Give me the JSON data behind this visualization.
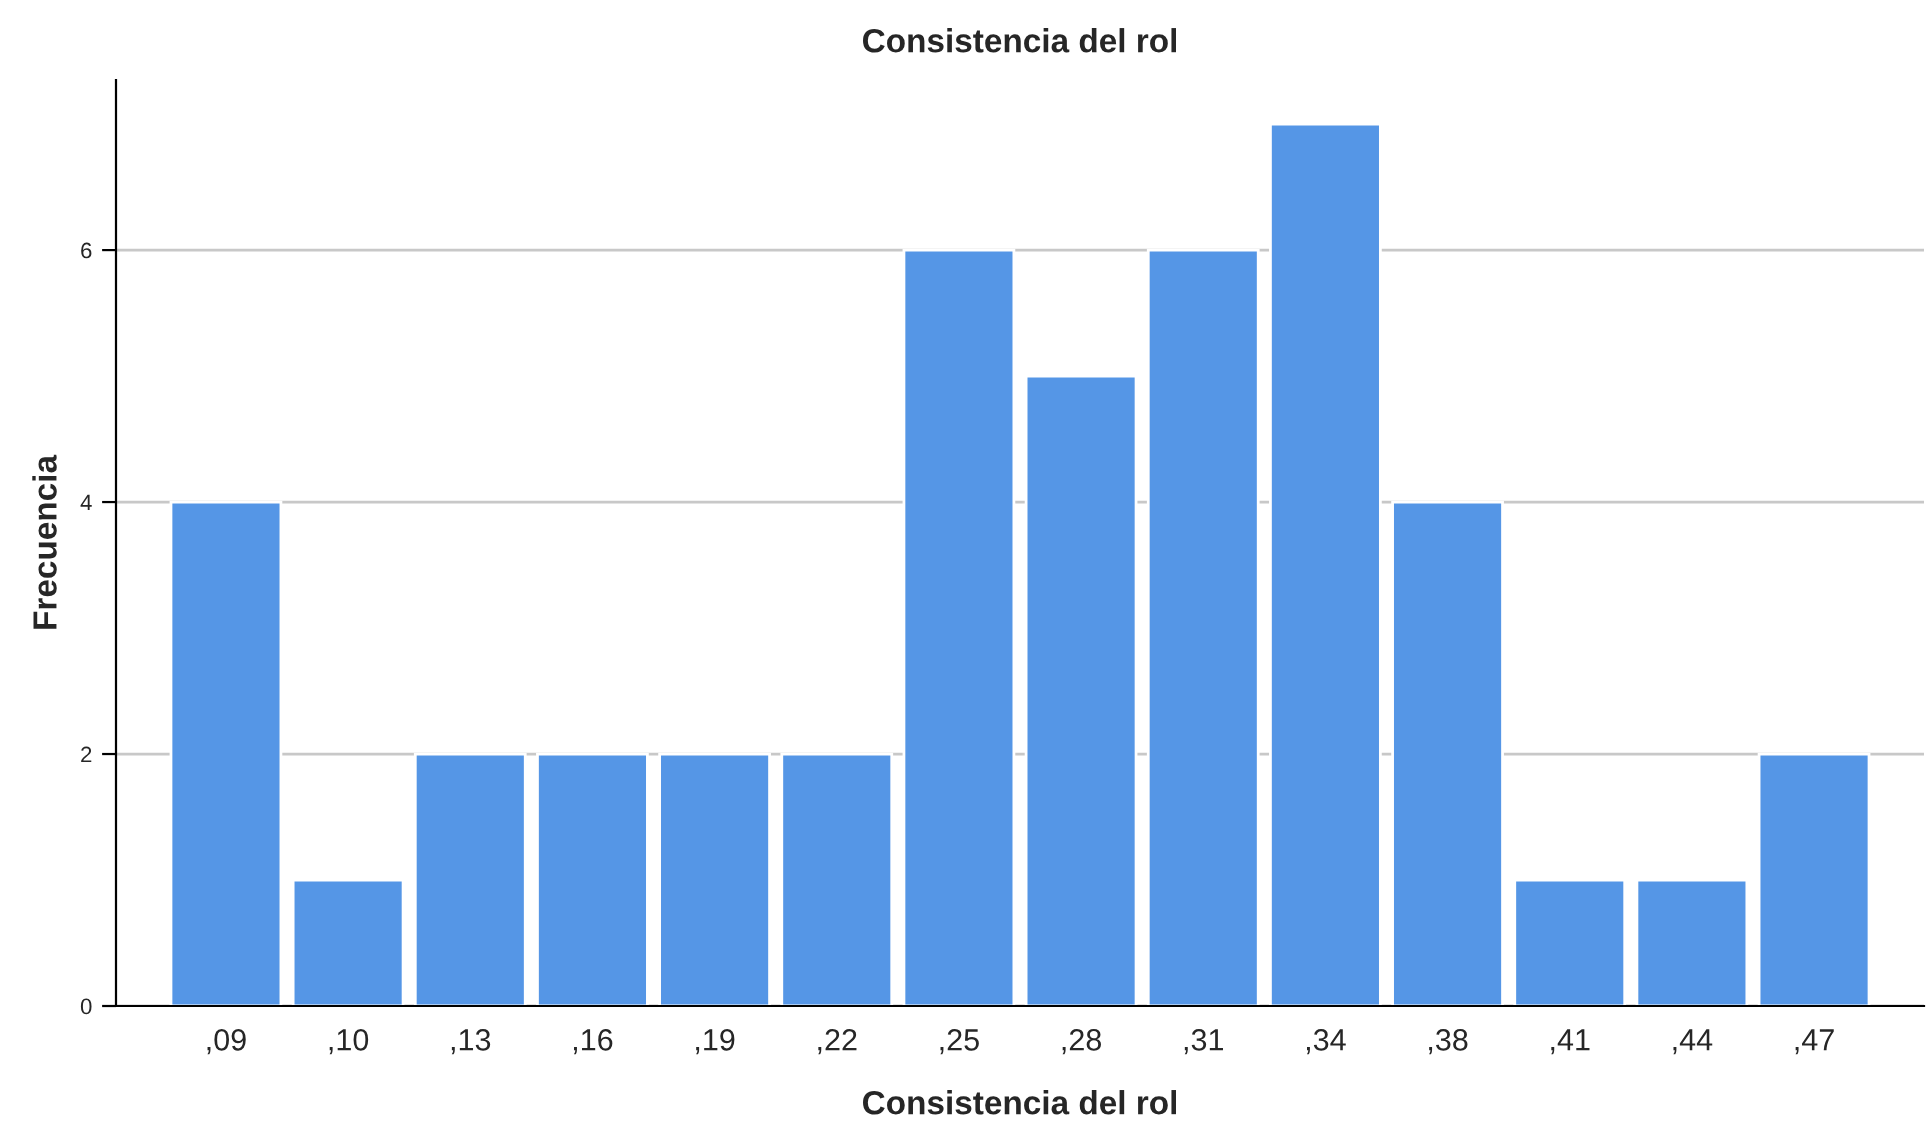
{
  "chart_data": {
    "type": "bar",
    "title": "Consistencia del rol",
    "xlabel": "Consistencia del rol",
    "ylabel": "Frecuencia",
    "categories": [
      ",09",
      ",10",
      ",13",
      ",16",
      ",19",
      ",22",
      ",25",
      ",28",
      ",31",
      ",34",
      ",38",
      ",41",
      ",44",
      ",47"
    ],
    "values": [
      4,
      1,
      2,
      2,
      2,
      2,
      6,
      5,
      6,
      7,
      4,
      1,
      1,
      2
    ],
    "color": "#5596e6",
    "ylim": [
      0,
      7.35
    ],
    "yticks": [
      0,
      2,
      4,
      6
    ],
    "grid": "y"
  }
}
